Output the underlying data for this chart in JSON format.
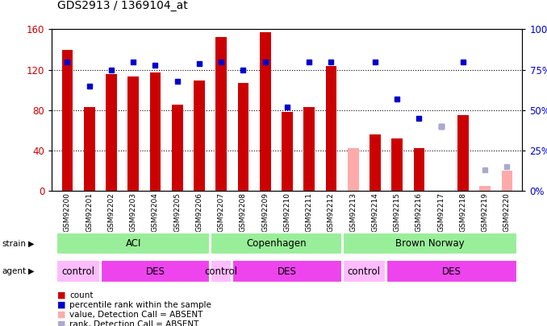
{
  "title": "GDS2913 / 1369104_at",
  "samples": [
    "GSM92200",
    "GSM92201",
    "GSM92202",
    "GSM92203",
    "GSM92204",
    "GSM92205",
    "GSM92206",
    "GSM92207",
    "GSM92208",
    "GSM92209",
    "GSM92210",
    "GSM92211",
    "GSM92212",
    "GSM92213",
    "GSM92214",
    "GSM92215",
    "GSM92216",
    "GSM92217",
    "GSM92218",
    "GSM92219",
    "GSM92220"
  ],
  "count_values": [
    140,
    83,
    116,
    113,
    117,
    85,
    109,
    152,
    107,
    157,
    78,
    83,
    124,
    null,
    56,
    52,
    42,
    null,
    75,
    null,
    null
  ],
  "rank_values": [
    80,
    65,
    75,
    80,
    78,
    68,
    79,
    80,
    75,
    80,
    52,
    80,
    80,
    null,
    80,
    57,
    45,
    40,
    80,
    null,
    null
  ],
  "absent_count_values": [
    null,
    null,
    null,
    null,
    null,
    null,
    null,
    null,
    null,
    null,
    null,
    null,
    null,
    42,
    null,
    null,
    null,
    null,
    null,
    5,
    20
  ],
  "absent_rank_values": [
    null,
    null,
    null,
    null,
    null,
    null,
    null,
    null,
    null,
    null,
    null,
    null,
    null,
    null,
    null,
    null,
    null,
    40,
    null,
    13,
    15
  ],
  "ylim_left": [
    0,
    160
  ],
  "ylim_right": [
    0,
    100
  ],
  "yticks_left": [
    0,
    40,
    80,
    120,
    160
  ],
  "yticks_right": [
    0,
    25,
    50,
    75,
    100
  ],
  "strain_groups": [
    {
      "label": "ACI",
      "start": 0,
      "end": 6
    },
    {
      "label": "Copenhagen",
      "start": 7,
      "end": 12
    },
    {
      "label": "Brown Norway",
      "start": 13,
      "end": 20
    }
  ],
  "agent_groups": [
    {
      "label": "control",
      "start": 0,
      "end": 1
    },
    {
      "label": "DES",
      "start": 2,
      "end": 6
    },
    {
      "label": "control",
      "start": 7,
      "end": 7
    },
    {
      "label": "DES",
      "start": 8,
      "end": 12
    },
    {
      "label": "control",
      "start": 13,
      "end": 14
    },
    {
      "label": "DES",
      "start": 15,
      "end": 20
    }
  ],
  "bar_width": 0.5,
  "count_color": "#cc0000",
  "rank_color": "#0000cc",
  "absent_count_color": "#ffaaaa",
  "absent_rank_color": "#aaaacc",
  "strain_color": "#99ee99",
  "control_color": "#ffbbff",
  "des_color": "#ee44ee",
  "grid_yticks": [
    40,
    80,
    120
  ],
  "xlabels_bg": "#cccccc"
}
